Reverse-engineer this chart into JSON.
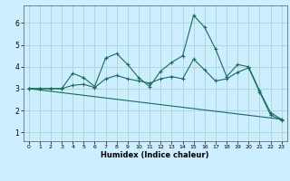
{
  "title": "",
  "xlabel": "Humidex (Indice chaleur)",
  "background_color": "#cceeff",
  "grid_color": "#aad4d4",
  "line_color": "#1a6b5a",
  "x_ticks": [
    0,
    1,
    2,
    3,
    4,
    5,
    6,
    7,
    8,
    9,
    10,
    11,
    12,
    13,
    14,
    15,
    16,
    17,
    18,
    19,
    20,
    21,
    22,
    23
  ],
  "ylim": [
    0.6,
    6.8
  ],
  "xlim": [
    -0.5,
    23.5
  ],
  "series1_x": [
    0,
    1,
    2,
    3,
    4,
    5,
    6,
    7,
    8,
    9,
    10,
    11,
    12,
    13,
    14,
    15,
    16,
    17,
    18,
    19,
    20,
    21,
    22,
    23
  ],
  "series1_y": [
    3.0,
    3.0,
    3.0,
    3.0,
    3.7,
    3.5,
    3.1,
    4.4,
    4.6,
    4.1,
    3.5,
    3.1,
    3.8,
    4.2,
    4.5,
    6.35,
    5.8,
    4.8,
    3.55,
    4.1,
    4.0,
    2.9,
    1.9,
    1.6
  ],
  "series2_x": [
    0,
    1,
    2,
    3,
    4,
    5,
    6,
    7,
    8,
    9,
    10,
    11,
    12,
    13,
    14,
    15,
    16,
    17,
    18,
    19,
    20,
    21,
    22,
    23
  ],
  "series2_y": [
    3.0,
    3.0,
    3.0,
    3.0,
    3.15,
    3.2,
    3.05,
    3.45,
    3.6,
    3.45,
    3.35,
    3.25,
    3.45,
    3.55,
    3.45,
    4.35,
    3.85,
    3.35,
    3.45,
    3.75,
    3.95,
    2.85,
    1.8,
    1.55
  ],
  "series3_x": [
    0,
    23
  ],
  "series3_y": [
    3.0,
    1.6
  ]
}
